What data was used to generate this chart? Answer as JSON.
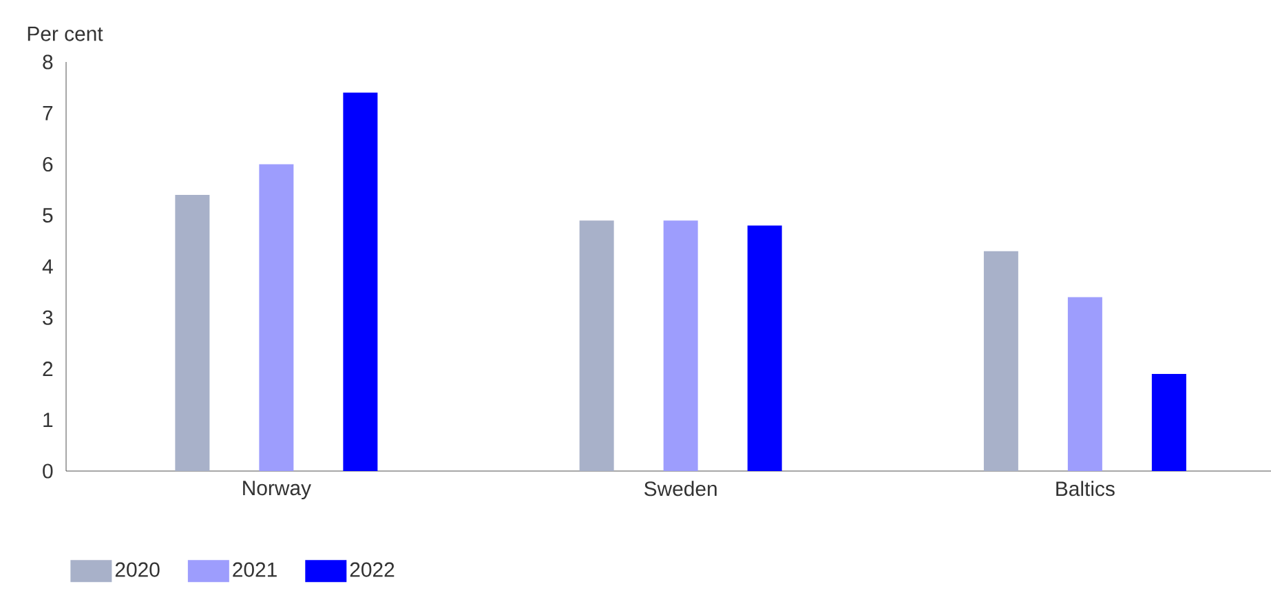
{
  "chart_data": {
    "type": "bar",
    "ylabel": "Per cent",
    "categories": [
      "Norway",
      "Sweden",
      "Baltics"
    ],
    "series": [
      {
        "name": "2020",
        "color": "#a8b1c9",
        "values": [
          5.4,
          4.9,
          4.3
        ]
      },
      {
        "name": "2021",
        "color": "#9d9dfd",
        "values": [
          6.0,
          4.9,
          3.4
        ]
      },
      {
        "name": "2022",
        "color": "#0000ff",
        "values": [
          7.4,
          4.8,
          1.9
        ]
      }
    ],
    "ylim": [
      0,
      8
    ],
    "yticks": [
      0,
      1,
      2,
      3,
      4,
      5,
      6,
      7,
      8
    ],
    "grid": false,
    "legend": "bottom left"
  }
}
